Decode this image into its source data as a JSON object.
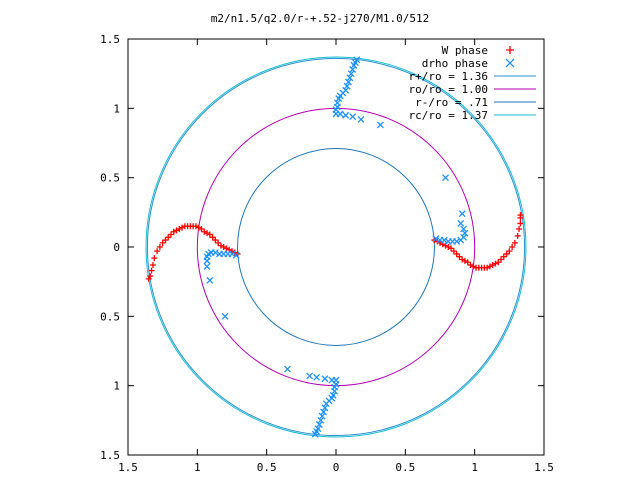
{
  "chart_data": {
    "type": "scatter",
    "title": "m2/n1.5/q2.0/r-+.52-j270/M1.0/512",
    "xlim": [
      -1.5,
      1.5
    ],
    "ylim": [
      -1.5,
      1.5
    ],
    "x_tick_values": [
      -1.5,
      -1,
      -0.5,
      0,
      0.5,
      1,
      1.5
    ],
    "x_tick_labels": [
      "1.5",
      "1",
      "0.5",
      "0",
      "0.5",
      "1",
      "1.5"
    ],
    "y_tick_values": [
      1.5,
      1,
      0.5,
      0,
      -0.5,
      -1,
      -1.5
    ],
    "y_tick_labels": [
      "1.5",
      "1",
      "0.5",
      "0",
      "0.5",
      "1",
      "1.5"
    ],
    "grid": false,
    "legend_position": "top-right",
    "legend": [
      {
        "label": "W phase",
        "marker": "+",
        "color": "#ff0000"
      },
      {
        "label": "drho phase",
        "marker": "x",
        "color": "#1e90ff"
      },
      {
        "label": "r+/ro = 1.36",
        "marker": "line",
        "color": "#2b8fcf"
      },
      {
        "label": "ro/ro = 1.00",
        "marker": "line",
        "color": "#b000b0"
      },
      {
        "label": "r-/ro = .71",
        "marker": "line",
        "color": "#1f77b4"
      },
      {
        "label": "rc/ro = 1.37",
        "marker": "line",
        "color": "#17becf"
      }
    ],
    "circles": [
      {
        "radius": 1.36,
        "color": "#2b8fcf"
      },
      {
        "radius": 1.0,
        "color": "#b000b0"
      },
      {
        "radius": 0.71,
        "color": "#1f77b4"
      },
      {
        "radius": 1.37,
        "color": "#17becf"
      }
    ],
    "series": [
      {
        "name": "W phase",
        "marker": "+",
        "color": "#ff0000",
        "points": [
          [
            0.71,
            0.05
          ],
          [
            0.73,
            0.04
          ],
          [
            0.75,
            0.03
          ],
          [
            0.77,
            0.02
          ],
          [
            0.79,
            0.01
          ],
          [
            0.81,
            0.0
          ],
          [
            0.83,
            -0.01
          ],
          [
            0.85,
            -0.03
          ],
          [
            0.87,
            -0.05
          ],
          [
            0.89,
            -0.07
          ],
          [
            0.91,
            -0.09
          ],
          [
            0.93,
            -0.1
          ],
          [
            0.95,
            -0.11
          ],
          [
            0.97,
            -0.13
          ],
          [
            0.99,
            -0.14
          ],
          [
            1.01,
            -0.15
          ],
          [
            1.03,
            -0.15
          ],
          [
            1.05,
            -0.15
          ],
          [
            1.07,
            -0.15
          ],
          [
            1.09,
            -0.15
          ],
          [
            1.11,
            -0.14
          ],
          [
            1.13,
            -0.13
          ],
          [
            1.15,
            -0.12
          ],
          [
            1.17,
            -0.11
          ],
          [
            1.19,
            -0.09
          ],
          [
            1.21,
            -0.07
          ],
          [
            1.23,
            -0.05
          ],
          [
            1.25,
            -0.03
          ],
          [
            1.27,
            0.0
          ],
          [
            1.29,
            0.03
          ],
          [
            1.31,
            0.08
          ],
          [
            1.32,
            0.13
          ],
          [
            1.33,
            0.17
          ],
          [
            1.33,
            0.21
          ],
          [
            1.33,
            0.23
          ],
          [
            -0.71,
            -0.05
          ],
          [
            -0.73,
            -0.04
          ],
          [
            -0.75,
            -0.03
          ],
          [
            -0.77,
            -0.02
          ],
          [
            -0.79,
            -0.01
          ],
          [
            -0.81,
            0.0
          ],
          [
            -0.83,
            0.01
          ],
          [
            -0.85,
            0.03
          ],
          [
            -0.87,
            0.05
          ],
          [
            -0.89,
            0.07
          ],
          [
            -0.91,
            0.09
          ],
          [
            -0.93,
            0.1
          ],
          [
            -0.95,
            0.11
          ],
          [
            -0.97,
            0.13
          ],
          [
            -0.99,
            0.14
          ],
          [
            -1.01,
            0.15
          ],
          [
            -1.03,
            0.15
          ],
          [
            -1.05,
            0.15
          ],
          [
            -1.07,
            0.15
          ],
          [
            -1.09,
            0.15
          ],
          [
            -1.11,
            0.14
          ],
          [
            -1.13,
            0.13
          ],
          [
            -1.15,
            0.12
          ],
          [
            -1.17,
            0.11
          ],
          [
            -1.19,
            0.09
          ],
          [
            -1.21,
            0.07
          ],
          [
            -1.23,
            0.05
          ],
          [
            -1.25,
            0.03
          ],
          [
            -1.27,
            0.0
          ],
          [
            -1.29,
            -0.03
          ],
          [
            -1.31,
            -0.08
          ],
          [
            -1.32,
            -0.13
          ],
          [
            -1.33,
            -0.17
          ],
          [
            -1.34,
            -0.21
          ],
          [
            -1.35,
            -0.23
          ]
        ]
      },
      {
        "name": "drho phase",
        "marker": "x",
        "color": "#1e90ff",
        "points": [
          [
            0.0,
            0.96
          ],
          [
            0.0,
            0.99
          ],
          [
            0.01,
            1.01
          ],
          [
            0.01,
            1.04
          ],
          [
            0.02,
            1.07
          ],
          [
            0.03,
            1.09
          ],
          [
            0.05,
            1.11
          ],
          [
            0.07,
            1.13
          ],
          [
            0.08,
            1.16
          ],
          [
            0.09,
            1.19
          ],
          [
            0.1,
            1.22
          ],
          [
            0.11,
            1.25
          ],
          [
            0.12,
            1.28
          ],
          [
            0.13,
            1.31
          ],
          [
            0.14,
            1.33
          ],
          [
            0.15,
            1.35
          ],
          [
            0.0,
            -0.96
          ],
          [
            0.0,
            -0.99
          ],
          [
            -0.01,
            -1.01
          ],
          [
            -0.01,
            -1.04
          ],
          [
            -0.02,
            -1.07
          ],
          [
            -0.03,
            -1.09
          ],
          [
            -0.05,
            -1.11
          ],
          [
            -0.07,
            -1.13
          ],
          [
            -0.08,
            -1.16
          ],
          [
            -0.09,
            -1.19
          ],
          [
            -0.1,
            -1.22
          ],
          [
            -0.11,
            -1.25
          ],
          [
            -0.12,
            -1.28
          ],
          [
            -0.13,
            -1.31
          ],
          [
            -0.14,
            -1.33
          ],
          [
            -0.15,
            -1.35
          ],
          [
            0.72,
            0.06
          ],
          [
            0.75,
            0.05
          ],
          [
            0.78,
            0.05
          ],
          [
            0.81,
            0.04
          ],
          [
            0.84,
            0.04
          ],
          [
            0.87,
            0.04
          ],
          [
            0.9,
            0.05
          ],
          [
            0.92,
            0.07
          ],
          [
            0.93,
            0.1
          ],
          [
            0.92,
            0.13
          ],
          [
            0.9,
            0.17
          ],
          [
            0.91,
            0.24
          ],
          [
            0.79,
            0.5
          ],
          [
            -0.72,
            -0.06
          ],
          [
            -0.75,
            -0.05
          ],
          [
            -0.78,
            -0.05
          ],
          [
            -0.81,
            -0.05
          ],
          [
            -0.84,
            -0.05
          ],
          [
            -0.87,
            -0.04
          ],
          [
            -0.9,
            -0.04
          ],
          [
            -0.92,
            -0.05
          ],
          [
            -0.93,
            -0.07
          ],
          [
            -0.93,
            -0.1
          ],
          [
            -0.93,
            -0.14
          ],
          [
            -0.91,
            -0.24
          ],
          [
            -0.8,
            -0.5
          ],
          [
            0.03,
            0.96
          ],
          [
            0.07,
            0.95
          ],
          [
            0.12,
            0.94
          ],
          [
            0.18,
            0.92
          ],
          [
            0.32,
            0.88
          ],
          [
            -0.03,
            -0.96
          ],
          [
            -0.08,
            -0.95
          ],
          [
            -0.14,
            -0.94
          ],
          [
            -0.19,
            -0.93
          ],
          [
            -0.35,
            -0.88
          ]
        ]
      }
    ]
  }
}
